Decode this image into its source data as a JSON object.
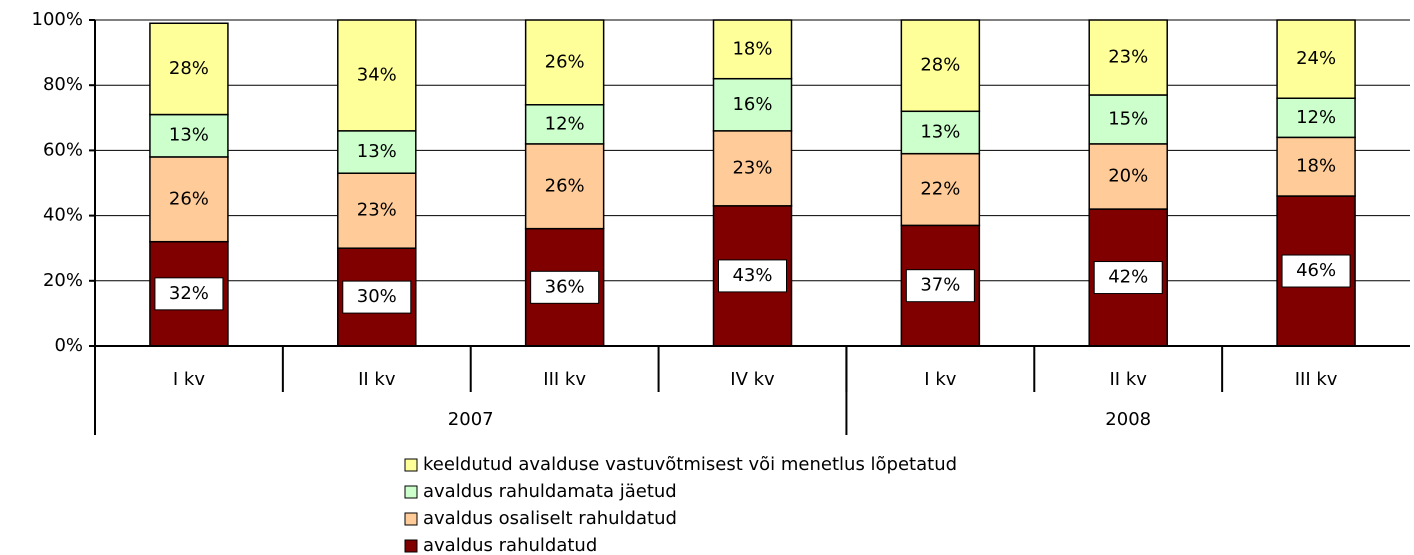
{
  "chart_data": {
    "type": "stacked_bar",
    "categories": [
      "I kv",
      "II kv",
      "III kv",
      "IV kv",
      "I kv",
      "II kv",
      "III kv"
    ],
    "groups": [
      {
        "label": "2007",
        "span": 4
      },
      {
        "label": "2008",
        "span": 3
      }
    ],
    "series": [
      {
        "name": "avaldus rahuldatud",
        "color": "#800000",
        "values": [
          32,
          30,
          36,
          43,
          37,
          42,
          46
        ],
        "value_labels": [
          "32%",
          "30%",
          "36%",
          "43%",
          "37%",
          "42%",
          "46%"
        ]
      },
      {
        "name": "avaldus osaliselt rahuldatud",
        "color": "#ffcc99",
        "values": [
          26,
          23,
          26,
          23,
          22,
          20,
          18
        ],
        "value_labels": [
          "26%",
          "23%",
          "26%",
          "23%",
          "22%",
          "20%",
          "18%"
        ]
      },
      {
        "name": "avaldus rahuldamata jäetud",
        "color": "#ccffcc",
        "values": [
          13,
          13,
          12,
          16,
          13,
          15,
          12
        ],
        "value_labels": [
          "13%",
          "13%",
          "12%",
          "16%",
          "13%",
          "15%",
          "12%"
        ]
      },
      {
        "name": "keeldutud avalduse vastuvõtmisest või menetlus lõpetatud",
        "color": "#ffff99",
        "values": [
          28,
          34,
          26,
          18,
          28,
          23,
          24
        ],
        "value_labels": [
          "28%",
          "34%",
          "26%",
          "18%",
          "28%",
          "23%",
          "24%"
        ]
      }
    ],
    "ylim": [
      0,
      100
    ],
    "yticks": [
      {
        "value": 0,
        "label": "0%"
      },
      {
        "value": 20,
        "label": "20%"
      },
      {
        "value": 40,
        "label": "40%"
      },
      {
        "value": 60,
        "label": "60%"
      },
      {
        "value": 80,
        "label": "80%"
      },
      {
        "value": 100,
        "label": "100%"
      }
    ],
    "grid": true,
    "legend": "bottom"
  }
}
